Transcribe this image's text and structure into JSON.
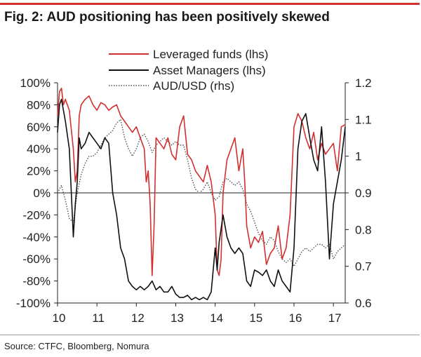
{
  "title": "Fig. 2: AUD positioning has been positively skewed",
  "source": "Source: CTFC, Bloomberg, Nomura",
  "chart_data": {
    "type": "line",
    "title": "Fig. 2: AUD positioning has been positively skewed",
    "xlabel": "",
    "ylabel": "",
    "x_ticks": [
      "10",
      "11",
      "12",
      "13",
      "14",
      "15",
      "16",
      "17"
    ],
    "x_range": [
      2010.0,
      2017.3
    ],
    "ylim_left": [
      -100,
      100
    ],
    "ylim_right": [
      0.6,
      1.2
    ],
    "left_ticks": [
      "100%",
      "80%",
      "60%",
      "40%",
      "20%",
      "0%",
      "-20%",
      "-40%",
      "-60%",
      "-80%",
      "-100%"
    ],
    "right_ticks": [
      "1.2",
      "1.1",
      "1",
      "0.9",
      "0.8",
      "0.7",
      "0.6"
    ],
    "grid": false,
    "legend_position": "top",
    "colors": {
      "leveraged": "#d32f2f",
      "asset": "#111111",
      "audusd": "#555555",
      "rule": "#d32f2f"
    },
    "series": [
      {
        "name": "Leveraged funds (lhs)",
        "axis": "left",
        "style": "solid",
        "x": [
          2010.0,
          2010.05,
          2010.1,
          2010.15,
          2010.2,
          2010.3,
          2010.4,
          2010.45,
          2010.5,
          2010.55,
          2010.6,
          2010.7,
          2010.8,
          2010.9,
          2011.0,
          2011.1,
          2011.2,
          2011.3,
          2011.4,
          2011.5,
          2011.6,
          2011.7,
          2011.8,
          2011.9,
          2012.0,
          2012.1,
          2012.2,
          2012.25,
          2012.3,
          2012.35,
          2012.4,
          2012.45,
          2012.5,
          2012.6,
          2012.7,
          2012.8,
          2012.9,
          2013.0,
          2013.1,
          2013.2,
          2013.3,
          2013.4,
          2013.5,
          2013.6,
          2013.7,
          2013.8,
          2013.9,
          2014.0,
          2014.05,
          2014.1,
          2014.15,
          2014.2,
          2014.3,
          2014.4,
          2014.5,
          2014.6,
          2014.7,
          2014.75,
          2014.8,
          2014.9,
          2015.0,
          2015.1,
          2015.2,
          2015.3,
          2015.4,
          2015.5,
          2015.6,
          2015.7,
          2015.8,
          2015.9,
          2016.0,
          2016.1,
          2016.2,
          2016.3,
          2016.4,
          2016.5,
          2016.6,
          2016.7,
          2016.8,
          2016.9,
          2017.0,
          2017.1,
          2017.2,
          2017.3
        ],
        "values": [
          70,
          92,
          95,
          80,
          85,
          75,
          40,
          10,
          20,
          70,
          80,
          85,
          88,
          80,
          75,
          82,
          80,
          75,
          78,
          80,
          70,
          65,
          60,
          55,
          60,
          50,
          40,
          10,
          20,
          -10,
          -75,
          -30,
          50,
          45,
          40,
          50,
          35,
          30,
          60,
          70,
          35,
          30,
          20,
          15,
          10,
          25,
          10,
          -20,
          -70,
          -75,
          -60,
          0,
          30,
          40,
          50,
          20,
          40,
          10,
          -30,
          -50,
          -40,
          -45,
          -35,
          -65,
          -55,
          -50,
          -30,
          -60,
          -50,
          -20,
          60,
          72,
          65,
          50,
          40,
          55,
          30,
          45,
          35,
          40,
          45,
          20,
          60,
          62
        ]
      },
      {
        "name": "Asset Managers (lhs)",
        "axis": "left",
        "style": "solid",
        "x": [
          2010.0,
          2010.05,
          2010.1,
          2010.15,
          2010.2,
          2010.3,
          2010.4,
          2010.45,
          2010.5,
          2010.55,
          2010.6,
          2010.7,
          2010.8,
          2010.9,
          2011.0,
          2011.1,
          2011.2,
          2011.3,
          2011.4,
          2011.5,
          2011.6,
          2011.7,
          2011.8,
          2011.9,
          2012.0,
          2012.1,
          2012.2,
          2012.3,
          2012.4,
          2012.5,
          2012.6,
          2012.7,
          2012.8,
          2012.9,
          2013.0,
          2013.1,
          2013.2,
          2013.3,
          2013.4,
          2013.5,
          2013.6,
          2013.7,
          2013.8,
          2013.9,
          2014.0,
          2014.05,
          2014.1,
          2014.2,
          2014.3,
          2014.4,
          2014.5,
          2014.6,
          2014.7,
          2014.8,
          2014.9,
          2015.0,
          2015.1,
          2015.2,
          2015.3,
          2015.4,
          2015.5,
          2015.6,
          2015.7,
          2015.8,
          2015.9,
          2016.0,
          2016.1,
          2016.2,
          2016.3,
          2016.4,
          2016.5,
          2016.6,
          2016.7,
          2016.8,
          2016.9,
          2017.0,
          2017.1,
          2017.2,
          2017.3
        ],
        "values": [
          55,
          80,
          85,
          75,
          65,
          40,
          -40,
          -10,
          10,
          50,
          40,
          45,
          55,
          50,
          45,
          40,
          50,
          45,
          0,
          -20,
          -50,
          -60,
          -80,
          -85,
          -88,
          -85,
          -88,
          -85,
          -80,
          -88,
          -85,
          -90,
          -90,
          -85,
          -92,
          -95,
          -95,
          -93,
          -97,
          -95,
          -97,
          -95,
          -97,
          -90,
          -50,
          -70,
          -45,
          -20,
          -40,
          -50,
          -55,
          -50,
          -55,
          -80,
          -85,
          -70,
          -72,
          -75,
          -70,
          -80,
          -85,
          -70,
          -80,
          -85,
          -90,
          -50,
          40,
          65,
          72,
          50,
          30,
          20,
          60,
          10,
          -60,
          -10,
          10,
          30,
          60
        ]
      },
      {
        "name": "AUD/USD (rhs)",
        "axis": "right",
        "style": "dotted",
        "x": [
          2010.0,
          2010.1,
          2010.2,
          2010.3,
          2010.4,
          2010.5,
          2010.6,
          2010.7,
          2010.8,
          2010.9,
          2011.0,
          2011.1,
          2011.2,
          2011.3,
          2011.4,
          2011.5,
          2011.6,
          2011.7,
          2011.8,
          2011.9,
          2012.0,
          2012.1,
          2012.2,
          2012.3,
          2012.4,
          2012.5,
          2012.6,
          2012.7,
          2012.8,
          2012.9,
          2013.0,
          2013.1,
          2013.2,
          2013.3,
          2013.4,
          2013.5,
          2013.6,
          2013.7,
          2013.8,
          2013.9,
          2014.0,
          2014.1,
          2014.2,
          2014.3,
          2014.4,
          2014.5,
          2014.6,
          2014.7,
          2014.8,
          2014.9,
          2015.0,
          2015.1,
          2015.2,
          2015.3,
          2015.4,
          2015.5,
          2015.6,
          2015.7,
          2015.8,
          2015.9,
          2016.0,
          2016.1,
          2016.2,
          2016.3,
          2016.4,
          2016.5,
          2016.6,
          2016.7,
          2016.8,
          2016.9,
          2017.0,
          2017.1,
          2017.2,
          2017.3
        ],
        "values": [
          0.9,
          0.92,
          0.88,
          0.83,
          0.82,
          0.9,
          0.95,
          0.98,
          1.0,
          1.0,
          1.01,
          1.03,
          1.05,
          1.06,
          1.07,
          1.09,
          1.1,
          1.05,
          1.02,
          1.0,
          1.02,
          1.05,
          1.06,
          1.04,
          1.01,
          1.03,
          1.04,
          1.05,
          1.04,
          1.03,
          1.04,
          1.03,
          1.03,
          0.99,
          0.94,
          0.91,
          0.9,
          0.91,
          0.93,
          0.9,
          0.88,
          0.89,
          0.93,
          0.94,
          0.93,
          0.92,
          0.93,
          0.91,
          0.87,
          0.85,
          0.82,
          0.79,
          0.77,
          0.76,
          0.78,
          0.77,
          0.74,
          0.72,
          0.71,
          0.72,
          0.7,
          0.72,
          0.74,
          0.75,
          0.74,
          0.75,
          0.76,
          0.76,
          0.75,
          0.76,
          0.72,
          0.74,
          0.75,
          0.76
        ]
      }
    ]
  }
}
